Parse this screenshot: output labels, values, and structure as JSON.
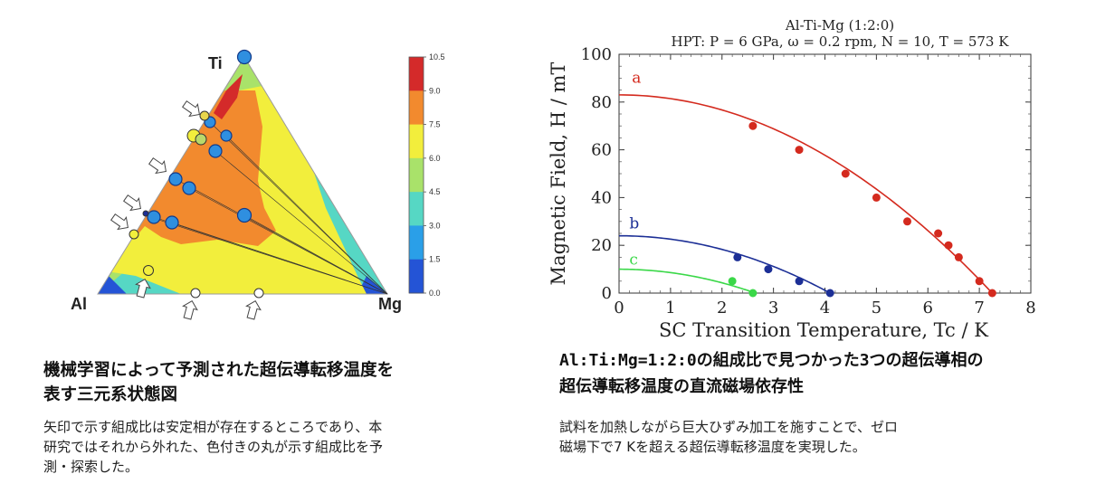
{
  "left_panel": {
    "vertex_labels": {
      "top": "Ti",
      "left": "Al",
      "right": "Mg"
    },
    "colorbar_ticks": [
      "10.5",
      "9.0",
      "7.5",
      "6.0",
      "4.5",
      "3.0",
      "1.5",
      "0.0"
    ],
    "colorbar_colors": [
      "#d42a2a",
      "#f28a2e",
      "#f2ee3c",
      "#a9e26a",
      "#56d7c4",
      "#2a9fe8",
      "#2454d6"
    ],
    "caption_title": "機械学習によって予測された超伝導転移温度を\n表す三元系状態図",
    "caption_body": "矢印で示す組成比は安定相が存在するところであり、本\n研究ではそれから外れた、色付きの丸が示す組成比を予\n測・探索した。"
  },
  "right_panel": {
    "caption_title": "Al:Ti:Mg=1:2:0の組成比で見つかった3つの超伝導相の\n超伝導転移温度の直流磁場依存性",
    "caption_body": "試料を加熱しながら巨大ひずみ加工を施すことで、ゼロ\n磁場下で7 Kを超える超伝導転移温度を実現した。"
  },
  "chart_data": {
    "type": "scatter",
    "title": "Al-Ti-Mg (1:2:0)",
    "subtitle": "HPT: P = 6 GPa, ω = 0.2 rpm, N = 10, T = 573 K",
    "xlabel": "SC Transition Temperature, Tc / K",
    "ylabel": "Magnetic Field, H / mT",
    "xlim": [
      0,
      8
    ],
    "ylim": [
      0,
      100
    ],
    "x_ticks": [
      "0",
      "1",
      "2",
      "3",
      "4",
      "5",
      "6",
      "7",
      "8"
    ],
    "y_ticks": [
      "0",
      "20",
      "40",
      "60",
      "80",
      "100"
    ],
    "grid": false,
    "series": [
      {
        "name": "a",
        "color": "#d42a1e",
        "points": [
          [
            2.6,
            70
          ],
          [
            3.5,
            60
          ],
          [
            4.4,
            50
          ],
          [
            5.0,
            40
          ],
          [
            5.6,
            30
          ],
          [
            6.2,
            25
          ],
          [
            6.4,
            20
          ],
          [
            6.6,
            15
          ],
          [
            7.0,
            5
          ],
          [
            7.25,
            0
          ]
        ],
        "fit": {
          "H0": 83,
          "Tc0": 7.25
        }
      },
      {
        "name": "b",
        "color": "#1c2f96",
        "points": [
          [
            2.3,
            15
          ],
          [
            2.9,
            10
          ],
          [
            3.5,
            5
          ],
          [
            4.1,
            0
          ]
        ],
        "fit": {
          "H0": 24,
          "Tc0": 4.1
        }
      },
      {
        "name": "c",
        "color": "#3ad848",
        "points": [
          [
            2.2,
            5
          ],
          [
            2.6,
            0
          ]
        ],
        "fit": {
          "H0": 10,
          "Tc0": 2.65
        }
      }
    ]
  }
}
